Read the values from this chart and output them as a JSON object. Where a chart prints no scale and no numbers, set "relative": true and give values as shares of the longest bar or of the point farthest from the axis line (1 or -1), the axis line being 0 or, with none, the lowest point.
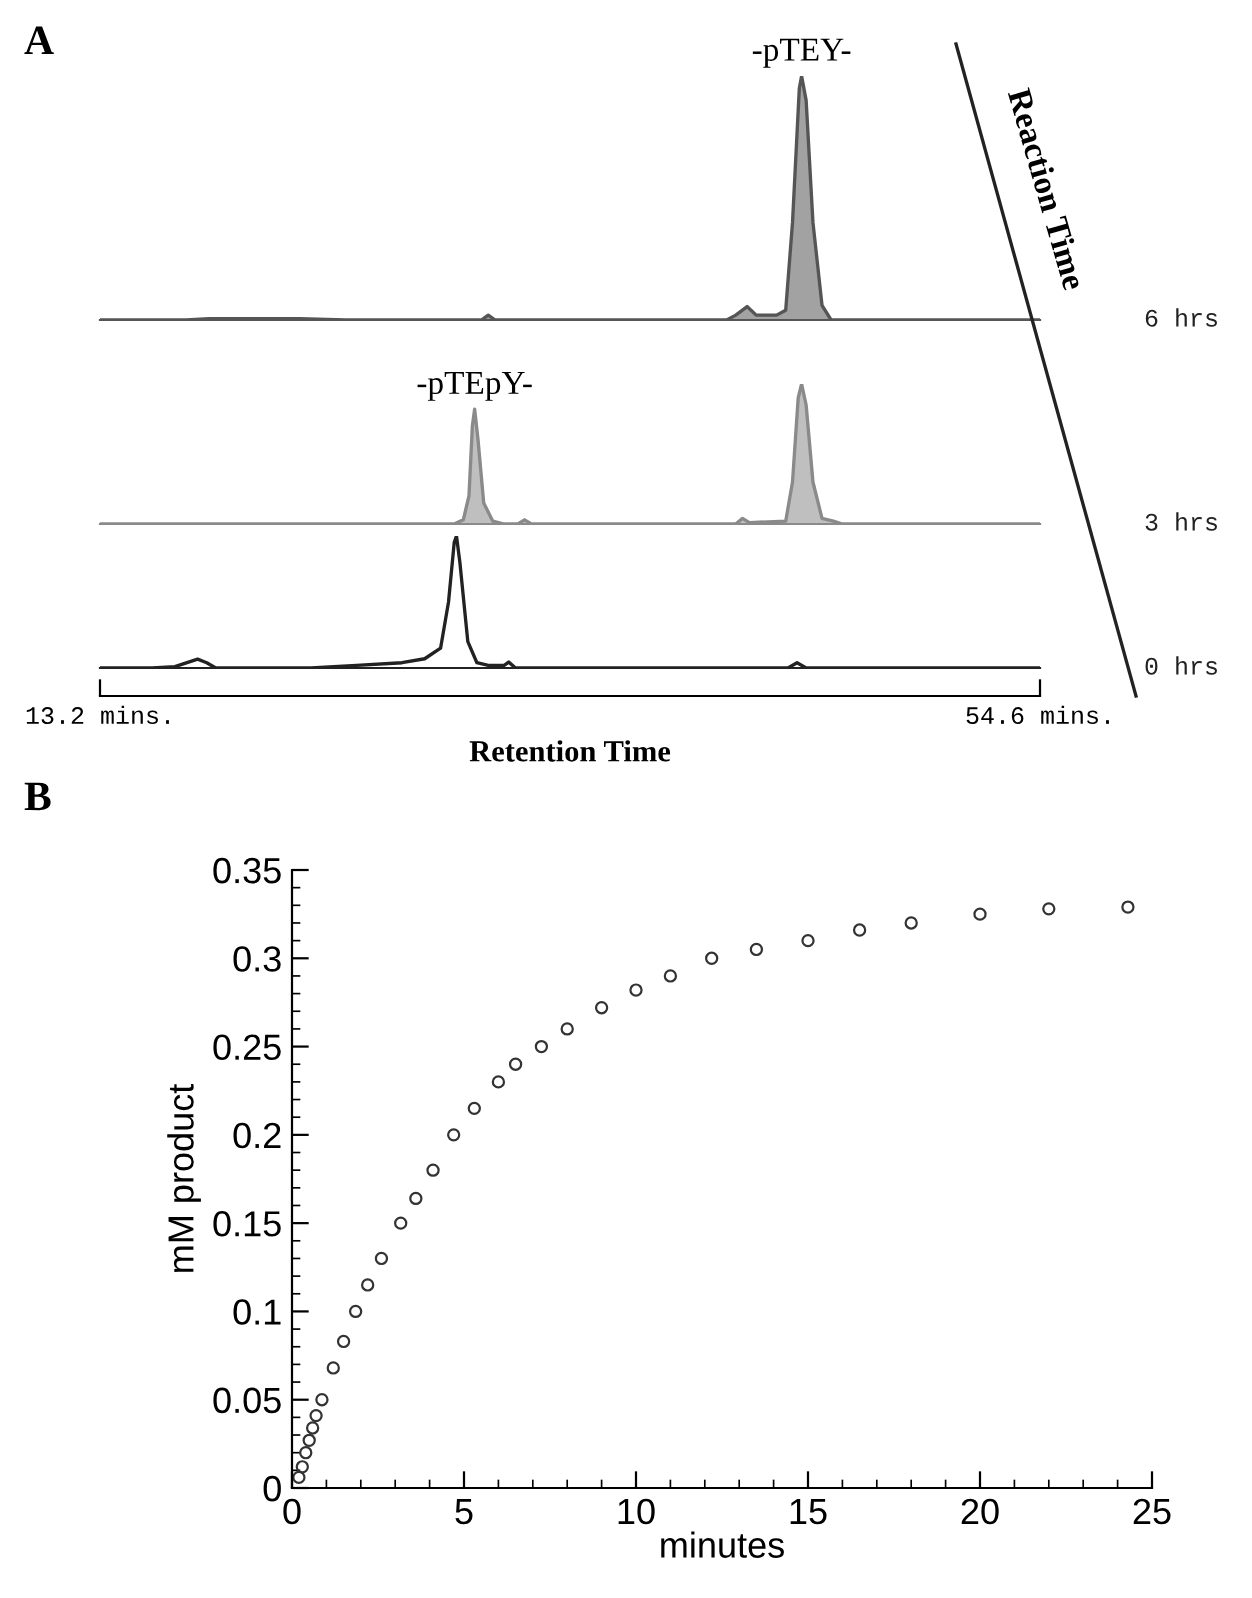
{
  "chart_data": [
    {
      "type": "area",
      "title": "A",
      "relative": true,
      "tick_labels": false,
      "xlim": [
        13.2,
        54.6
      ],
      "annotations": [
        {
          "text": "-pTEY-",
          "x": 44.1,
          "y": 1.0
        },
        "Reaction Time"
      ],
      "series": [
        {
          "name": "6 hrs",
          "color": "#555555",
          "x": [
            13.2,
            17,
            18,
            22,
            24,
            30.0,
            30.3,
            30.6,
            40.8,
            41.2,
            41.7,
            42.1,
            43.0,
            43.4,
            43.7,
            44.0,
            44.1,
            44.3,
            44.6,
            45.0,
            45.4,
            54.6
          ],
          "values": [
            0,
            0,
            0.005,
            0.005,
            0,
            0,
            0.02,
            0,
            0,
            0.02,
            0.055,
            0.02,
            0.02,
            0.04,
            0.4,
            0.95,
            1.0,
            0.9,
            0.4,
            0.06,
            0,
            0
          ]
        }
      ]
    },
    {
      "type": "area",
      "relative": true,
      "tick_labels": false,
      "xlim": [
        13.2,
        54.6
      ],
      "annotations": [
        {
          "text": "-pTEpY-",
          "x": 29.7,
          "y": 0.82
        }
      ],
      "series": [
        {
          "name": "3 hrs",
          "color": "#8a8a8a",
          "x": [
            13.2,
            20,
            28.8,
            29.2,
            29.45,
            29.6,
            29.7,
            29.85,
            30.1,
            30.5,
            31.0,
            31.6,
            31.9,
            32.2,
            40.5,
            41.2,
            41.5,
            41.8,
            43.4,
            43.7,
            43.95,
            44.1,
            44.3,
            44.6,
            45.0,
            45.5,
            45.9,
            54.6
          ],
          "values": [
            0,
            0,
            0,
            0.03,
            0.2,
            0.7,
            0.82,
            0.6,
            0.15,
            0.02,
            0,
            0,
            0.03,
            0,
            0,
            0,
            0.04,
            0.01,
            0.02,
            0.3,
            0.9,
            1.0,
            0.85,
            0.3,
            0.04,
            0.02,
            0,
            0
          ]
        }
      ]
    },
    {
      "type": "line",
      "relative": true,
      "tick_labels": "x",
      "xlim": [
        13.2,
        54.6
      ],
      "xticks": [
        {
          "value": 13.2,
          "label": "13.2 mins."
        },
        {
          "value": 54.6,
          "label": "54.6 mins."
        }
      ],
      "xlabel": "Retention Time",
      "series": [
        {
          "name": "0 hrs",
          "color": "#222222",
          "x": [
            13.2,
            15.5,
            16.5,
            17.2,
            17.5,
            17.9,
            18.3,
            22.5,
            24.5,
            26.5,
            27.5,
            28.2,
            28.55,
            28.8,
            28.9,
            29.05,
            29.4,
            29.8,
            30.3,
            31.0,
            31.2,
            31.5,
            43.5,
            43.9,
            44.3,
            54.6
          ],
          "values": [
            0,
            0,
            0.01,
            0.05,
            0.067,
            0.04,
            0,
            0,
            0.02,
            0.04,
            0.07,
            0.15,
            0.5,
            0.95,
            1.0,
            0.8,
            0.2,
            0.04,
            0.02,
            0.02,
            0.045,
            0,
            0,
            0.04,
            0,
            0
          ]
        }
      ]
    },
    {
      "type": "scatter",
      "title": "B",
      "xlabel": "minutes",
      "ylabel": "mM product",
      "marker": "circle",
      "xlim": [
        0,
        25
      ],
      "xticks": [
        0,
        5,
        10,
        15,
        20,
        25
      ],
      "ylim": [
        0,
        0.35
      ],
      "yticks": [
        0,
        0.05,
        0.1,
        0.15,
        0.2,
        0.25,
        0.3,
        0.35
      ],
      "series": [
        {
          "color": "#333333",
          "x": [
            0.2,
            0.3,
            0.4,
            0.5,
            0.6,
            0.7,
            0.87,
            1.2,
            1.5,
            1.85,
            2.2,
            2.6,
            3.16,
            3.6,
            4.1,
            4.7,
            5.3,
            6,
            6.5,
            7.25,
            8,
            9,
            10,
            11,
            12.2,
            13.5,
            15,
            16.5,
            18,
            20,
            22,
            24.3
          ],
          "values": [
            0.006,
            0.012,
            0.02,
            0.027,
            0.034,
            0.041,
            0.05,
            0.068,
            0.083,
            0.1,
            0.115,
            0.13,
            0.15,
            0.164,
            0.18,
            0.2,
            0.215,
            0.23,
            0.24,
            0.25,
            0.26,
            0.272,
            0.282,
            0.29,
            0.3,
            0.305,
            0.31,
            0.316,
            0.32,
            0.325,
            0.328,
            0.329
          ]
        }
      ]
    }
  ]
}
